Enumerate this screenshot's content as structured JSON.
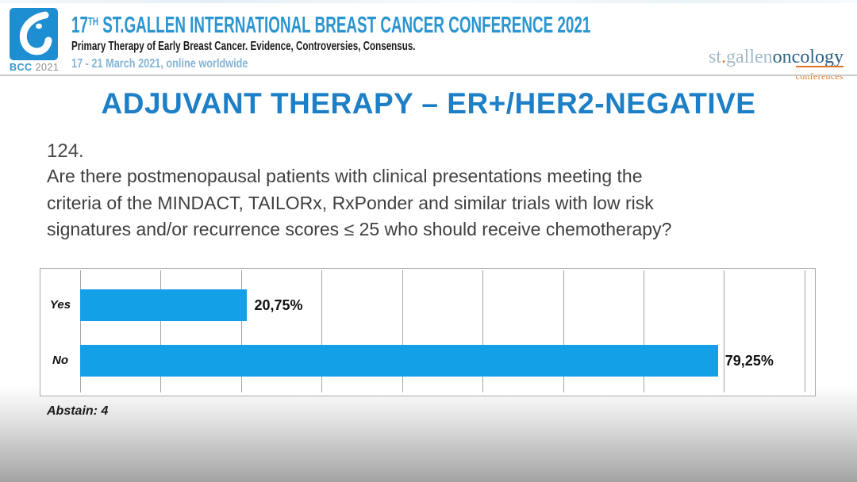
{
  "header": {
    "logo": {
      "acronym": "BCC",
      "year": "2021"
    },
    "title_num": "17",
    "title_sup": "TH",
    "title_rest": " ST.GALLEN INTERNATIONAL BREAST CANCER CONFERENCE 2021",
    "subtitle": "Primary Therapy of Early Breast Cancer. Evidence, Controversies, Consensus.",
    "date": "17 - 21 March 2021, online worldwide",
    "brand": {
      "part1": "st",
      "dot": ".",
      "part2": "gallen",
      "part3": "oncology",
      "sub": "conferences"
    }
  },
  "slide": {
    "title": "ADJUVANT THERAPY – ER+/HER2-NEGATIVE",
    "question_number": "124.",
    "question_lines": [
      "Are there postmenopausal patients with clinical presentations meeting the",
      "criteria of the MINDACT, TAILORx, RxPonder and similar trials with low risk",
      "signatures and/or recurrence scores ≤ 25 who should receive chemotherapy?"
    ]
  },
  "chart_data": {
    "type": "bar",
    "orientation": "horizontal",
    "categories": [
      "Yes",
      "No"
    ],
    "values": [
      20.75,
      79.25
    ],
    "value_labels": [
      "20,75%",
      "79,25%"
    ],
    "title": "",
    "xlabel": "",
    "ylabel": "",
    "xlim": [
      0,
      91.3
    ],
    "gridlines": [
      0,
      10,
      20,
      30,
      40,
      50,
      60,
      70,
      80,
      90
    ],
    "grid": true,
    "legend": false,
    "bar_color": "#14a0e6",
    "footnote": "Abstain: 4"
  },
  "colors": {
    "title_blue": "#1d7fc6",
    "header_blue": "#2b95d0",
    "date_blue": "#84b5d6",
    "bar_blue": "#14a0e6",
    "brand_blue": "#2d6286",
    "brand_gray_blue": "#a3bac9",
    "brand_orange": "#e07420",
    "logo_blue": "#1e8ed2"
  }
}
